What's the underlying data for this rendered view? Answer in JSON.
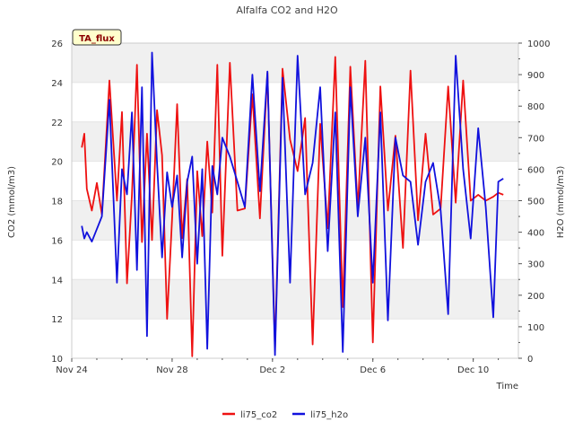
{
  "chart_data": {
    "type": "line",
    "title": "Alfalfa CO2 and H2O",
    "xlabel": "Time",
    "ylabel_left": "CO2 (mmol/m3)",
    "ylabel_right": "H2O (mmol/m3)",
    "annotation": "TA_flux",
    "x_ticks": [
      "Nov 24",
      "Nov 28",
      "Dec 2",
      "Dec 6",
      "Dec 10"
    ],
    "x_tick_days": [
      0,
      4,
      8,
      12,
      16
    ],
    "xlim_days": [
      0,
      17.8
    ],
    "ylim_left": [
      10,
      26
    ],
    "yticks_left": [
      10,
      12,
      14,
      16,
      18,
      20,
      22,
      24,
      26
    ],
    "ylim_right": [
      0,
      1000
    ],
    "yticks_right": [
      0,
      100,
      200,
      300,
      400,
      500,
      600,
      700,
      800,
      900,
      1000
    ],
    "grid": "horizontal bands",
    "legend_position": "bottom-center",
    "colors": {
      "li75_co2": "#ee1111",
      "li75_h2o": "#1111dd",
      "band": "#f0f0f0",
      "annotation_bg": "#ffffcc",
      "annotation_text": "#8b0000"
    },
    "series": [
      {
        "name": "li75_co2",
        "axis": "left",
        "x": [
          0.4,
          0.5,
          0.6,
          0.8,
          1.0,
          1.2,
          1.5,
          1.8,
          2.0,
          2.2,
          2.4,
          2.6,
          2.8,
          3.0,
          3.2,
          3.4,
          3.6,
          3.8,
          4.0,
          4.2,
          4.4,
          4.6,
          4.8,
          5.0,
          5.2,
          5.4,
          5.6,
          5.8,
          6.0,
          6.3,
          6.6,
          6.9,
          7.2,
          7.5,
          7.8,
          8.1,
          8.4,
          8.7,
          9.0,
          9.3,
          9.6,
          9.9,
          10.2,
          10.5,
          10.8,
          11.1,
          11.4,
          11.7,
          12.0,
          12.3,
          12.6,
          12.9,
          13.2,
          13.5,
          13.8,
          14.1,
          14.4,
          14.7,
          15.0,
          15.3,
          15.6,
          15.9,
          16.2,
          16.5,
          16.8,
          17.0,
          17.2
        ],
        "values": [
          20.7,
          21.4,
          18.6,
          17.5,
          18.9,
          17.3,
          24.1,
          18.0,
          22.5,
          13.8,
          18.3,
          24.9,
          15.9,
          21.4,
          16.0,
          22.6,
          20.3,
          12.0,
          17.1,
          22.9,
          16.1,
          19.1,
          10.1,
          19.5,
          16.2,
          21.0,
          17.4,
          24.9,
          15.2,
          25.0,
          17.5,
          17.6,
          23.4,
          17.1,
          24.5,
          10.5,
          24.7,
          21.1,
          19.5,
          22.2,
          10.7,
          21.9,
          16.6,
          25.3,
          12.6,
          24.8,
          17.6,
          25.1,
          10.8,
          23.8,
          17.5,
          21.3,
          15.6,
          24.6,
          17.0,
          21.4,
          17.3,
          17.6,
          23.8,
          17.9,
          24.1,
          18.0,
          18.3,
          18.0,
          18.2,
          18.4,
          18.3
        ]
      },
      {
        "name": "li75_h2o",
        "axis": "right",
        "x": [
          0.4,
          0.5,
          0.6,
          0.8,
          1.0,
          1.2,
          1.5,
          1.8,
          2.0,
          2.2,
          2.4,
          2.6,
          2.8,
          3.0,
          3.2,
          3.4,
          3.6,
          3.8,
          4.0,
          4.2,
          4.4,
          4.6,
          4.8,
          5.0,
          5.2,
          5.4,
          5.6,
          5.8,
          6.0,
          6.3,
          6.6,
          6.9,
          7.2,
          7.5,
          7.8,
          8.1,
          8.4,
          8.7,
          9.0,
          9.3,
          9.6,
          9.9,
          10.2,
          10.5,
          10.8,
          11.1,
          11.4,
          11.7,
          12.0,
          12.3,
          12.6,
          12.9,
          13.2,
          13.5,
          13.8,
          14.1,
          14.4,
          14.7,
          15.0,
          15.3,
          15.6,
          15.9,
          16.2,
          16.5,
          16.8,
          17.0,
          17.2
        ],
        "values": [
          420,
          380,
          400,
          370,
          410,
          450,
          820,
          240,
          600,
          520,
          780,
          280,
          860,
          70,
          970,
          620,
          320,
          590,
          480,
          580,
          320,
          560,
          640,
          300,
          600,
          30,
          610,
          520,
          700,
          640,
          560,
          480,
          900,
          530,
          910,
          10,
          890,
          240,
          960,
          520,
          620,
          860,
          340,
          780,
          20,
          860,
          450,
          700,
          240,
          780,
          120,
          700,
          580,
          560,
          360,
          560,
          620,
          470,
          140,
          960,
          600,
          380,
          730,
          480,
          130,
          560,
          570
        ]
      }
    ]
  }
}
